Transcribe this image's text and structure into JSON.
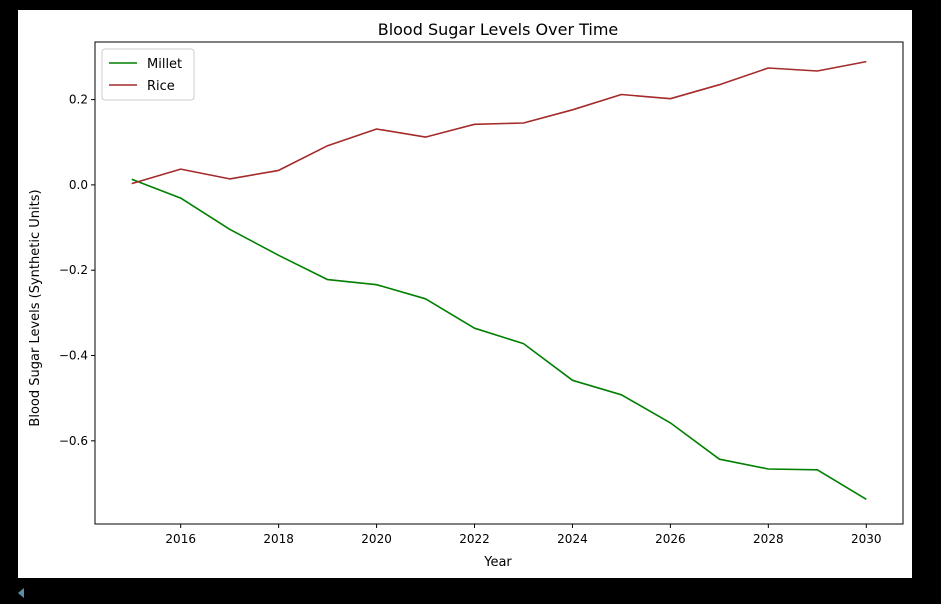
{
  "chart_data": {
    "type": "line",
    "title": "Blood Sugar Levels Over Time",
    "xlabel": "Year",
    "ylabel": "Blood Sugar Levels (Synthetic Units)",
    "x": [
      2015,
      2016,
      2017,
      2018,
      2019,
      2020,
      2021,
      2022,
      2023,
      2024,
      2025,
      2026,
      2027,
      2028,
      2029,
      2030
    ],
    "xticks": [
      "2016",
      "2018",
      "2020",
      "2022",
      "2024",
      "2026",
      "2028",
      "2030"
    ],
    "yticks": [
      "0.2",
      "0.0",
      "−0.2",
      "−0.4",
      "−0.6"
    ],
    "xlim": [
      2014.25,
      2030.75
    ],
    "ylim": [
      -0.795,
      0.335
    ],
    "grid": false,
    "legend_position": "upper-left",
    "series": [
      {
        "name": "Millet",
        "color": "#008000",
        "values": [
          0.013,
          -0.031,
          -0.104,
          -0.165,
          -0.222,
          -0.234,
          -0.267,
          -0.336,
          -0.372,
          -0.458,
          -0.492,
          -0.558,
          -0.643,
          -0.666,
          -0.668,
          -0.737
        ]
      },
      {
        "name": "Rice",
        "color": "#a52a2a",
        "values": [
          0.003,
          0.037,
          0.014,
          0.034,
          0.092,
          0.131,
          0.112,
          0.142,
          0.145,
          0.176,
          0.212,
          0.202,
          0.235,
          0.274,
          0.267,
          0.289
        ]
      }
    ]
  }
}
